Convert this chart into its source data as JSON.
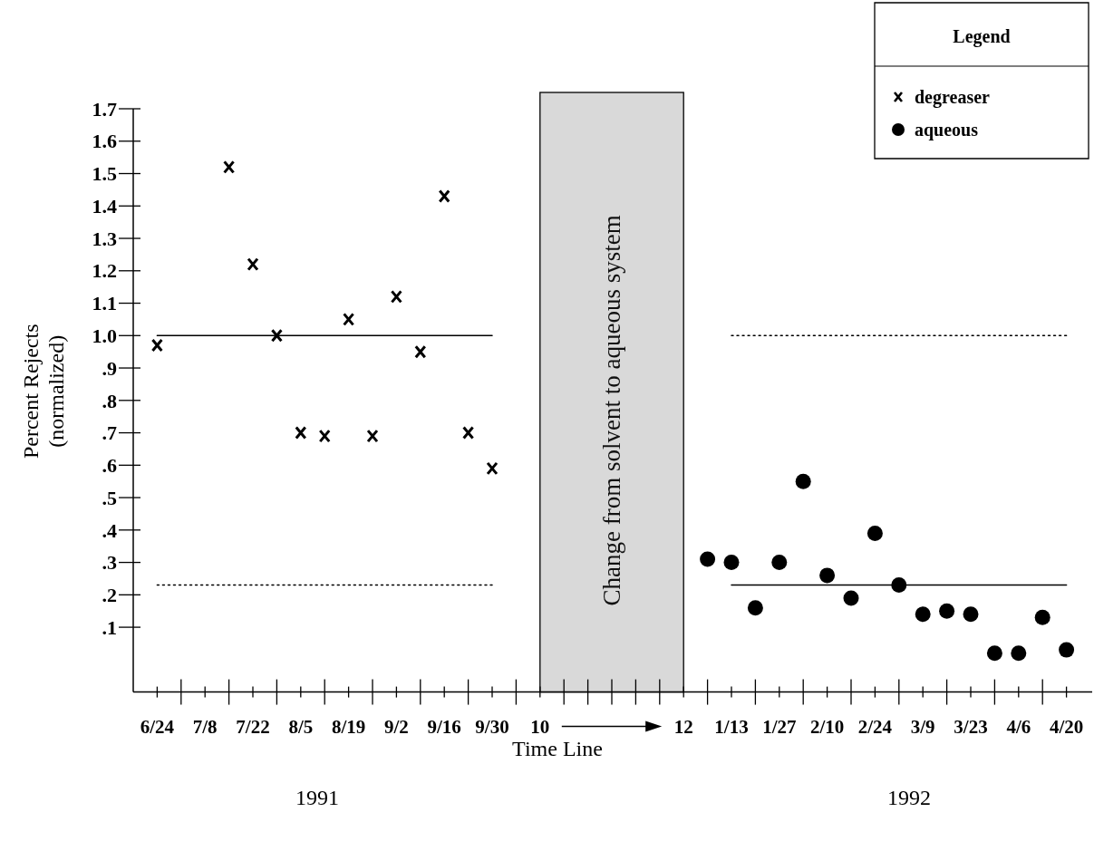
{
  "chart_data": {
    "type": "scatter",
    "xlabel": "Time Line",
    "ylabel": "Percent Rejects\n(normalized)",
    "legend_title": "Legend",
    "legend": "top right",
    "categories": [
      "6/24",
      null,
      "7/8",
      null,
      "7/22",
      null,
      "8/5",
      null,
      "8/19",
      null,
      "9/2",
      null,
      "9/16",
      null,
      "9/30",
      null,
      "10",
      null,
      null,
      null,
      null,
      null,
      "12",
      null,
      "1/13",
      null,
      "1/27",
      null,
      "2/10",
      null,
      "2/24",
      null,
      "3/9",
      null,
      "3/23",
      null,
      "4/6",
      null,
      "4/20"
    ],
    "ylim": [
      -0.1,
      1.7
    ],
    "yticks": [
      {
        "value": 0.1,
        "label": ".1"
      },
      {
        "value": 0.2,
        "label": ".2"
      },
      {
        "value": 0.3,
        "label": ".3"
      },
      {
        "value": 0.4,
        "label": ".4"
      },
      {
        "value": 0.5,
        "label": ".5"
      },
      {
        "value": 0.6,
        "label": ".6"
      },
      {
        "value": 0.7,
        "label": ".7"
      },
      {
        "value": 0.8,
        "label": ".8"
      },
      {
        "value": 0.9,
        "label": ".9"
      },
      {
        "value": 1.0,
        "label": "1.0"
      },
      1.1,
      1.2,
      1.3,
      1.4,
      1.5,
      1.6,
      1.7
    ],
    "grid": false,
    "series": [
      {
        "name": "degreaser",
        "type": "scatter",
        "marker": "cross",
        "color": "#000000",
        "values": [
          0.97,
          null,
          null,
          1.52,
          1.22,
          1.0,
          0.7,
          0.69,
          1.05,
          0.69,
          1.12,
          0.95,
          1.43,
          0.7,
          0.59,
          null,
          null,
          null,
          null,
          null,
          null,
          null,
          null,
          null,
          null,
          null,
          null,
          null,
          null,
          null,
          null,
          null,
          null,
          null,
          null,
          null,
          null,
          null,
          null
        ]
      },
      {
        "name": "aqueous",
        "type": "scatter",
        "marker": "circle",
        "color": "#000000",
        "values": [
          null,
          null,
          null,
          null,
          null,
          null,
          null,
          null,
          null,
          null,
          null,
          null,
          null,
          null,
          null,
          null,
          null,
          null,
          null,
          null,
          null,
          null,
          null,
          0.31,
          0.3,
          0.16,
          0.3,
          0.55,
          0.26,
          0.19,
          0.39,
          0.23,
          0.14,
          0.15,
          0.14,
          0.02,
          0.02,
          0.13,
          0.03
        ]
      },
      {
        "type": "line",
        "line_style": "solid",
        "color": "#000000",
        "x": [
          "6/24",
          "9/30"
        ],
        "values": [
          1.0,
          1.0
        ]
      },
      {
        "type": "line",
        "line_style": "dotted",
        "color": "#000000",
        "x": [
          "6/24",
          "9/30"
        ],
        "values": [
          0.23,
          0.23
        ]
      },
      {
        "type": "line",
        "line_style": "dotted",
        "color": "#000000",
        "x": [
          "1/13",
          "4/20"
        ],
        "values": [
          1.0,
          1.0
        ]
      },
      {
        "type": "line",
        "line_style": "solid",
        "color": "#000000",
        "x": [
          "1/13",
          "4/20"
        ],
        "values": [
          0.23,
          0.23
        ]
      }
    ],
    "bands": [
      {
        "axis": "x",
        "from": "10",
        "to": "12",
        "label": "Change from solvent to aqueous system",
        "color": "#d9d9d9"
      }
    ],
    "annotations": [
      "1991",
      "1992"
    ]
  }
}
